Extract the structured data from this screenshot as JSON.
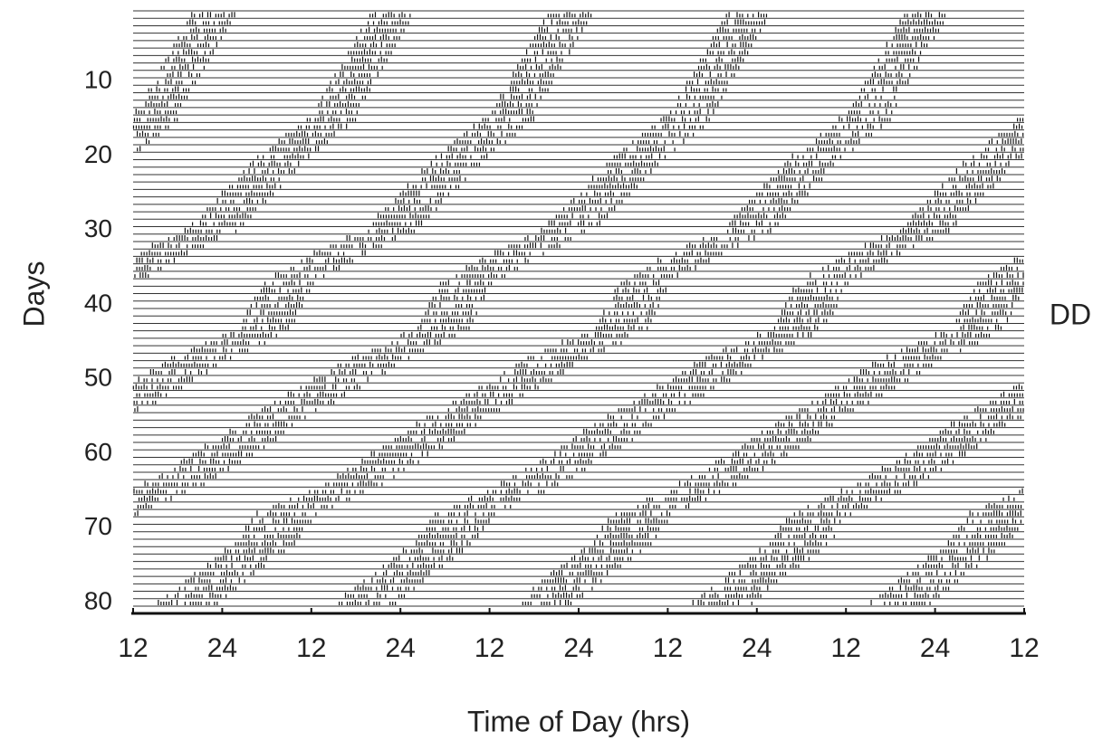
{
  "chart_data": {
    "type": "actogram",
    "x_label": "Time of Day (hrs)",
    "y_label": "Days",
    "annotation": "DD",
    "xlim": [
      12,
      132
    ],
    "ylim": [
      0,
      80
    ],
    "xticks": [
      {
        "value": 12,
        "label": "12"
      },
      {
        "value": 24,
        "label": "24"
      },
      {
        "value": 36,
        "label": "12"
      },
      {
        "value": 48,
        "label": "24"
      },
      {
        "value": 60,
        "label": "12"
      },
      {
        "value": 72,
        "label": "24"
      },
      {
        "value": 84,
        "label": "12"
      },
      {
        "value": 96,
        "label": "24"
      },
      {
        "value": 108,
        "label": "12"
      },
      {
        "value": 120,
        "label": "24"
      },
      {
        "value": 132,
        "label": "12"
      }
    ],
    "yticks": [
      10,
      20,
      30,
      40,
      50,
      60,
      70,
      80
    ],
    "color": "#111111",
    "onset": [
      19.9,
      19.3,
      18.7,
      18.1,
      17.5,
      17.0,
      16.4,
      15.8,
      15.2,
      14.6,
      14.1,
      13.5,
      13.0,
      12.4,
      35.1,
      33.9,
      32.6,
      31.3,
      30.1,
      28.8,
      27.8,
      26.9,
      25.9,
      25.0,
      24.0,
      23.0,
      22.0,
      21.0,
      20.0,
      19.0,
      16.8,
      14.6,
      12.4,
      34.7,
      32.9,
      31.2,
      29.4,
      28.9,
      28.4,
      27.9,
      27.4,
      26.9,
      26.4,
      24.1,
      21.8,
      19.5,
      17.2,
      15.6,
      14.0,
      12.4,
      34.6,
      32.9,
      31.1,
      29.4,
      27.6,
      26.2,
      24.7,
      23.3,
      21.7,
      20.1,
      18.5,
      16.9,
      15.2,
      13.6,
      35.4,
      33.2,
      30.9,
      28.7,
      28.0,
      27.2,
      26.5,
      25.8,
      24.4,
      23.1,
      21.7,
      20.3,
      19.1,
      17.9,
      16.6,
      15.4
    ],
    "offset": [
      25.9,
      25.3,
      24.7,
      24.1,
      23.5,
      23.0,
      22.4,
      21.8,
      21.2,
      20.6,
      20.1,
      19.5,
      19.0,
      18.4,
      42.1,
      40.9,
      39.6,
      38.3,
      37.1,
      35.8,
      34.8,
      33.9,
      32.9,
      32.0,
      31.0,
      30.0,
      29.0,
      28.0,
      27.0,
      26.0,
      23.8,
      21.6,
      19.4,
      41.7,
      39.9,
      38.2,
      36.4,
      35.9,
      35.4,
      34.9,
      34.4,
      33.9,
      33.4,
      31.6,
      29.8,
      27.5,
      25.2,
      23.6,
      22.0,
      20.4,
      42.6,
      40.9,
      39.1,
      37.4,
      35.6,
      34.2,
      32.7,
      31.3,
      29.7,
      28.1,
      26.5,
      24.9,
      23.2,
      21.6,
      43.4,
      41.2,
      38.9,
      36.7,
      36.0,
      35.2,
      34.5,
      33.8,
      32.4,
      31.1,
      29.7,
      28.3,
      27.1,
      25.9,
      24.6,
      23.4
    ]
  }
}
